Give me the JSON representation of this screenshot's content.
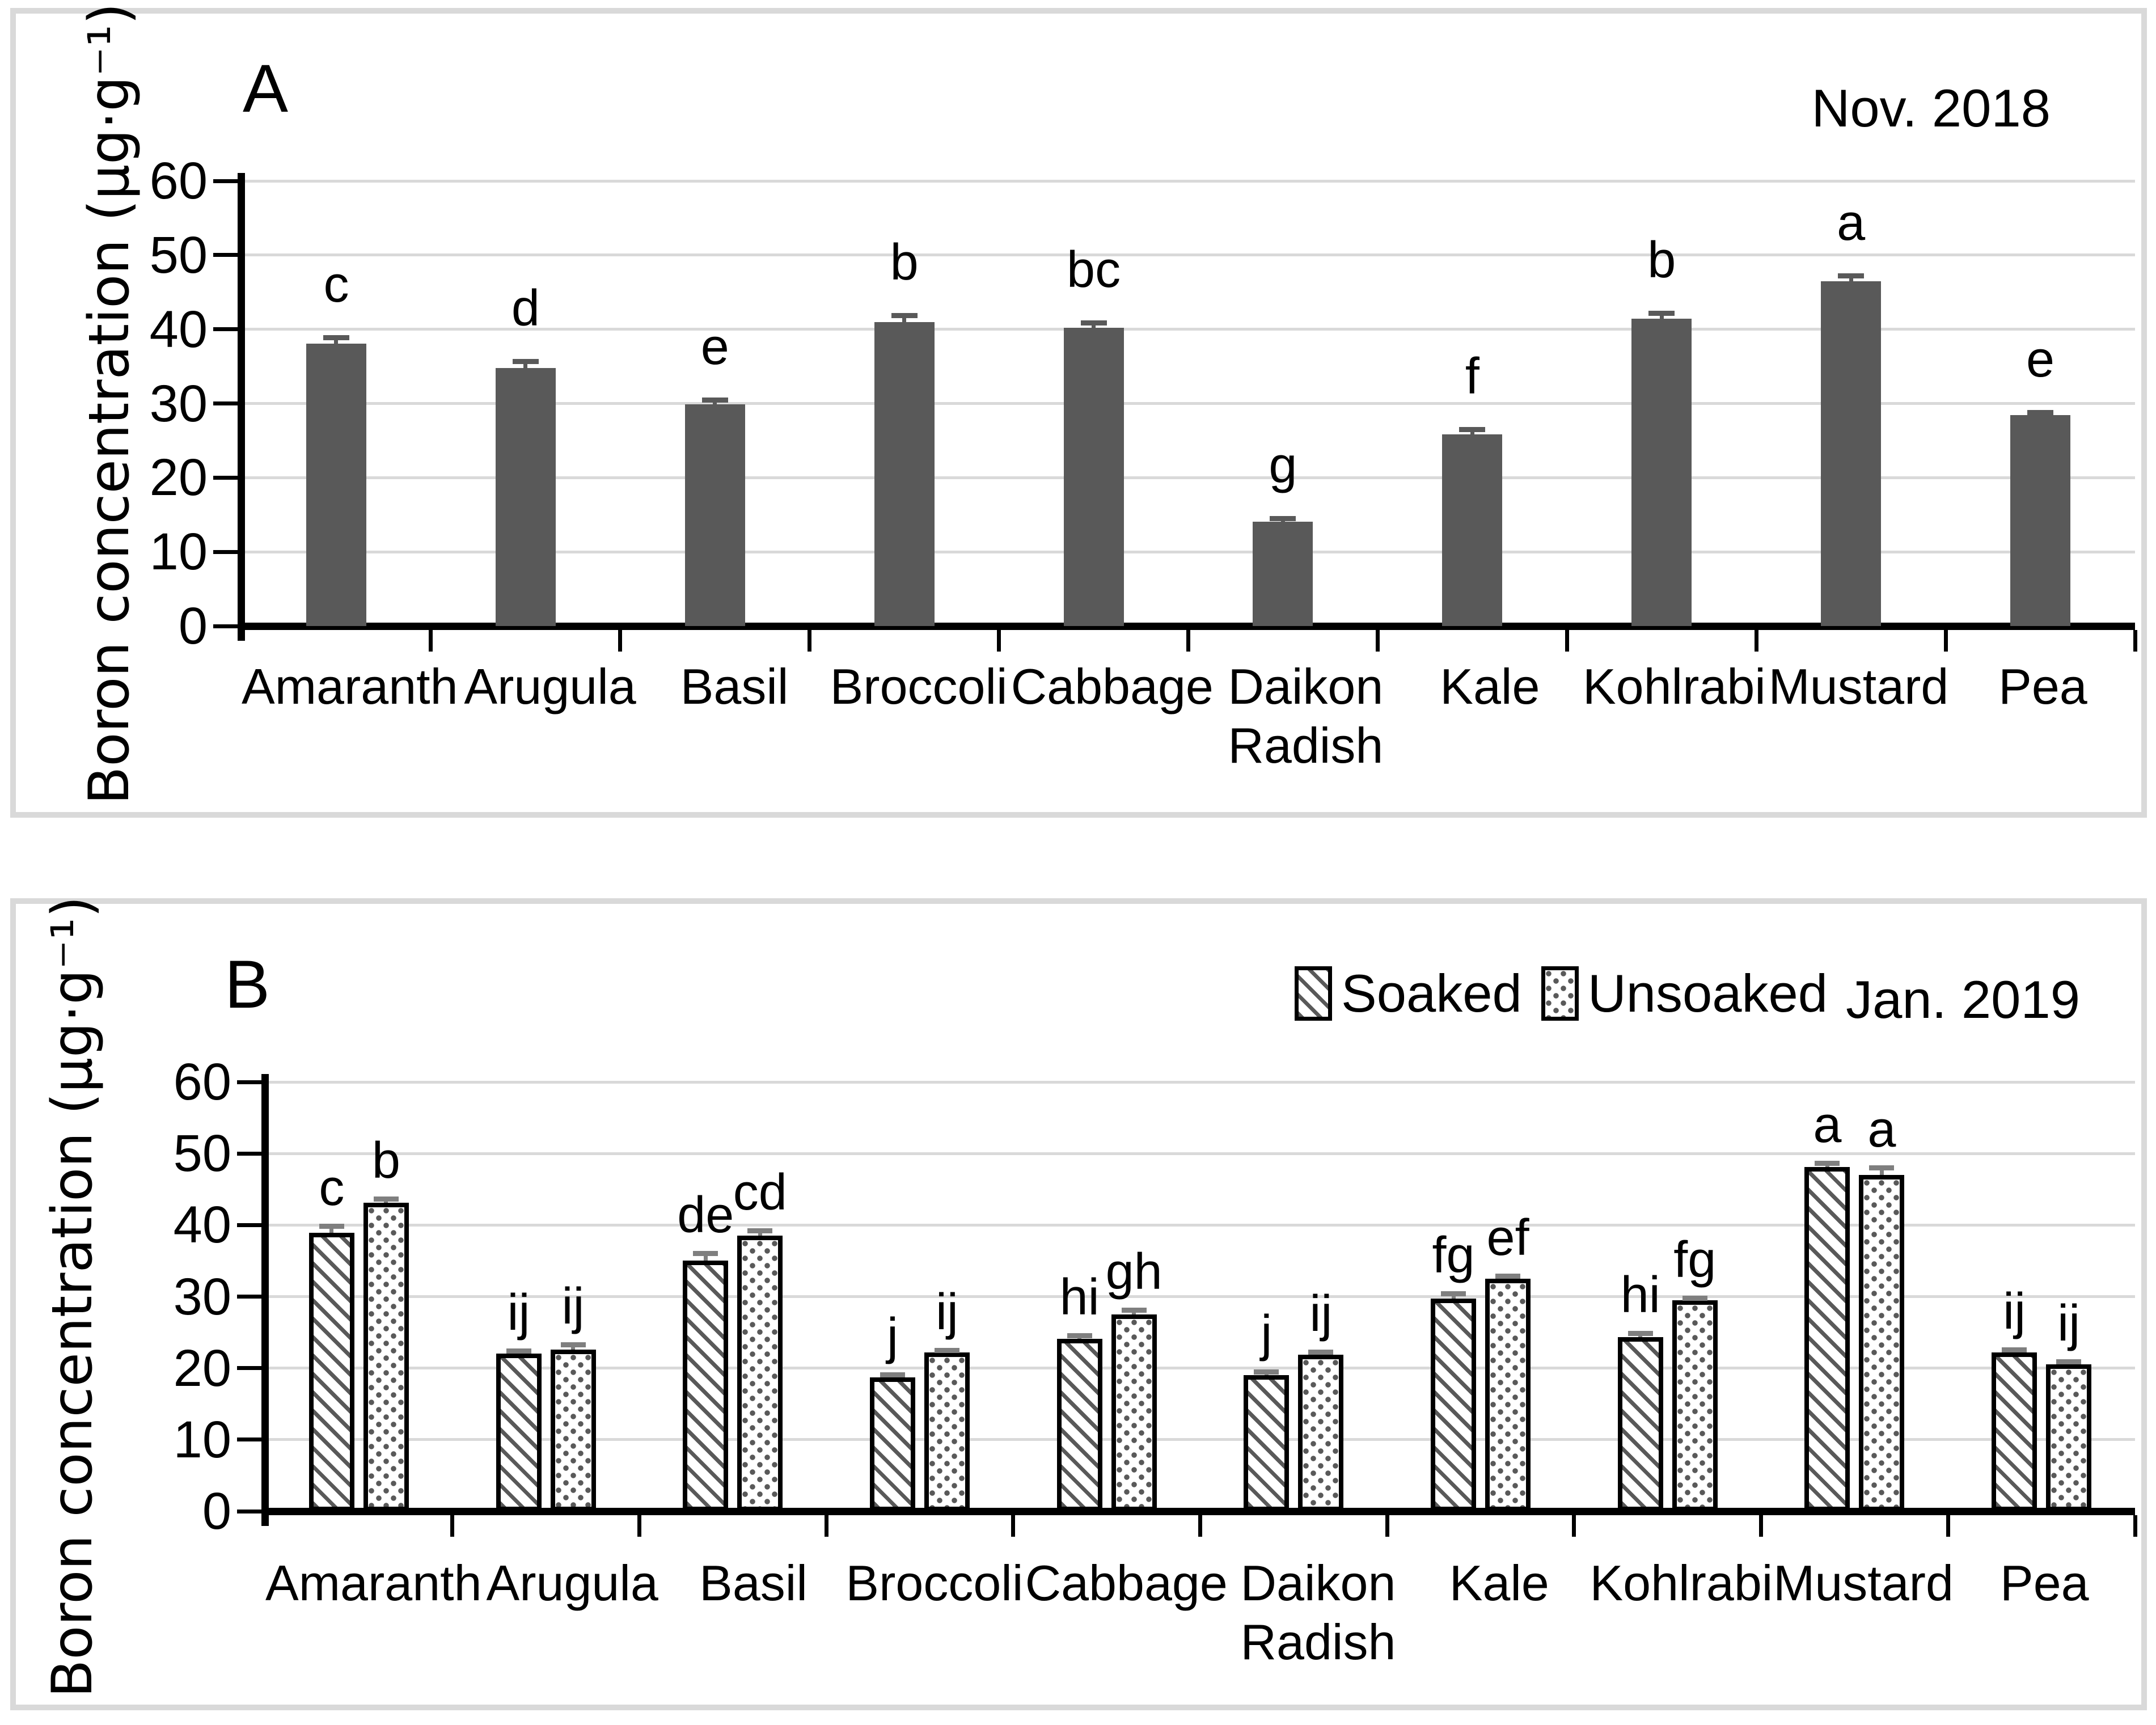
{
  "colors": {
    "bar_solid": "#595959",
    "pattern_ink": "#595959",
    "gridline": "#d9d9d9",
    "axis": "#000000",
    "panel_border": "#d9d9d9",
    "error_bar_a": "#595959",
    "error_bar_b": "#7f7f7f"
  },
  "panel_a": {
    "label": "A",
    "period": "Nov. 2018",
    "y_axis_title": "Boron concentration (µg·g⁻¹)"
  },
  "panel_b": {
    "label": "B",
    "period": "Jan. 2019",
    "y_axis_title": "Boron concentration (µg·g⁻¹)",
    "legend": {
      "soaked_label": "Soaked",
      "unsoaked_label": "Unsoaked"
    }
  },
  "chart_data": [
    {
      "type": "bar",
      "panel": "A",
      "title": "Nov. 2018",
      "ylabel": "Boron concentration (µg·g⁻¹)",
      "ylim": [
        0,
        60
      ],
      "yticks": [
        0,
        10,
        20,
        30,
        40,
        50,
        60
      ],
      "grid": true,
      "legend_position": "none",
      "categories": [
        "Amaranth",
        "Arugula",
        "Basil",
        "Broccoli",
        "Cabbage",
        "Daikon Radish",
        "Kale",
        "Kohlrabi",
        "Mustard",
        "Pea"
      ],
      "series": [
        {
          "name": "Nov. 2018",
          "pattern": "solid",
          "values": [
            38.1,
            34.8,
            29.9,
            41.0,
            40.2,
            14.1,
            25.8,
            41.4,
            46.5,
            28.4
          ],
          "errors": [
            0.8,
            0.9,
            0.6,
            0.9,
            0.7,
            0.4,
            0.7,
            0.8,
            0.7,
            0.4
          ],
          "letters": [
            "c",
            "d",
            "e",
            "b",
            "bc",
            "g",
            "f",
            "b",
            "a",
            "e"
          ]
        }
      ]
    },
    {
      "type": "bar",
      "panel": "B",
      "title": "Jan. 2019",
      "ylabel": "Boron concentration (µg·g⁻¹)",
      "ylim": [
        0,
        60
      ],
      "yticks": [
        0,
        10,
        20,
        30,
        40,
        50,
        60
      ],
      "grid": true,
      "legend_position": "top-right",
      "categories": [
        "Amaranth",
        "Arugula",
        "Basil",
        "Broccoli",
        "Cabbage",
        "Daikon Radish",
        "Kale",
        "Kohlrabi",
        "Mustard",
        "Pea"
      ],
      "series": [
        {
          "name": "Soaked",
          "pattern": "hatch",
          "values": [
            38.9,
            22.0,
            35.0,
            18.7,
            24.1,
            19.0,
            29.7,
            24.3,
            48.1,
            22.2
          ],
          "errors": [
            1.0,
            0.4,
            1.1,
            0.4,
            0.5,
            0.5,
            0.7,
            0.6,
            0.6,
            0.4
          ],
          "letters": [
            "c",
            "ij",
            "de",
            "j",
            "hi",
            "j",
            "fg",
            "hi",
            "a",
            "ij"
          ]
        },
        {
          "name": "Unsoaked",
          "pattern": "dots",
          "values": [
            43.1,
            22.6,
            38.5,
            22.2,
            27.5,
            21.9,
            32.5,
            29.5,
            47.0,
            20.5
          ],
          "errors": [
            0.6,
            0.7,
            0.7,
            0.3,
            0.6,
            0.4,
            0.4,
            0.3,
            1.0,
            0.4
          ],
          "letters": [
            "b",
            "ij",
            "cd",
            "ij",
            "gh",
            "ij",
            "ef",
            "fg",
            "a",
            "ij"
          ]
        }
      ]
    }
  ]
}
